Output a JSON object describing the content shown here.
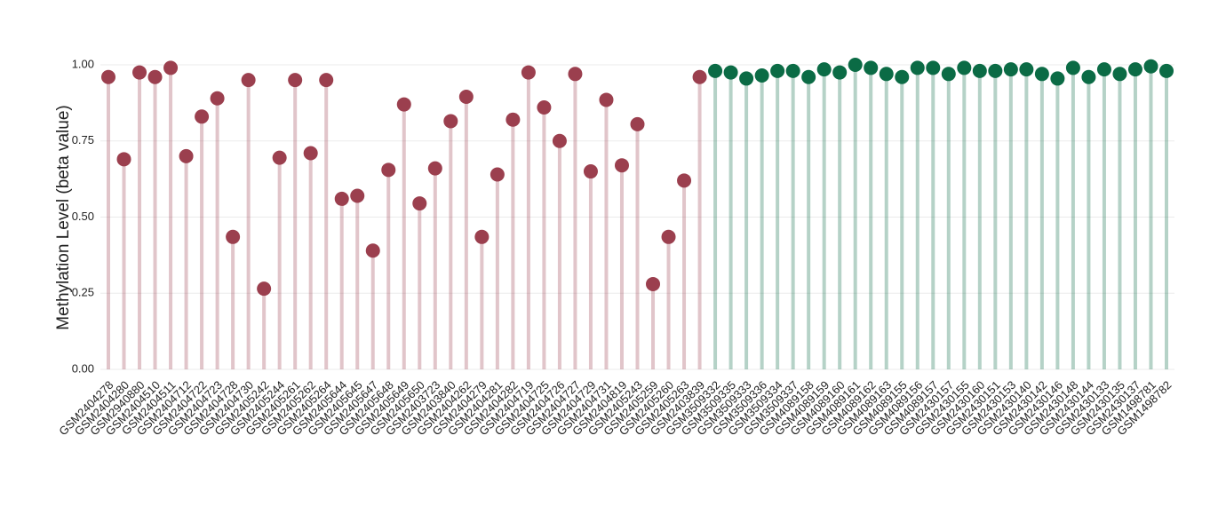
{
  "chart_data": {
    "type": "lollipop",
    "y_label": "Methylation Level (beta value)",
    "categories": [
      "GSM2404278",
      "GSM2404280",
      "GSM2940880",
      "GSM2404510",
      "GSM2404511",
      "GSM2404712",
      "GSM2404722",
      "GSM2404723",
      "GSM2404728",
      "GSM2404730",
      "GSM2405242",
      "GSM2405244",
      "GSM2405261",
      "GSM2405262",
      "GSM2405264",
      "GSM2405644",
      "GSM2405645",
      "GSM2405647",
      "GSM2405648",
      "GSM2405649",
      "GSM2405650",
      "GSM2403723",
      "GSM2403840",
      "GSM2404262",
      "GSM2404279",
      "GSM2404281",
      "GSM2404282",
      "GSM2404719",
      "GSM2404725",
      "GSM2404726",
      "GSM2404727",
      "GSM2404729",
      "GSM2404731",
      "GSM2404819",
      "GSM2405243",
      "GSM2405259",
      "GSM2405260",
      "GSM2405263",
      "GSM2403839",
      "GSM3509332",
      "GSM3509335",
      "GSM3509333",
      "GSM3509336",
      "GSM3509334",
      "GSM3509337",
      "GSM4089158",
      "GSM4089159",
      "GSM4089160",
      "GSM4089161",
      "GSM4089162",
      "GSM4089163",
      "GSM4089155",
      "GSM4089156",
      "GSM4089157",
      "GSM2430157",
      "GSM2430155",
      "GSM2430160",
      "GSM2430151",
      "GSM2430153",
      "GSM2430140",
      "GSM2430142",
      "GSM2430146",
      "GSM2430148",
      "GSM2430144",
      "GSM2430133",
      "GSM2430135",
      "GSM2430137",
      "GSM1498781",
      "GSM1498782"
    ],
    "values": [
      0.96,
      0.69,
      0.975,
      0.96,
      0.99,
      0.7,
      0.83,
      0.89,
      0.435,
      0.95,
      0.265,
      0.695,
      0.95,
      0.71,
      0.95,
      0.56,
      0.57,
      0.39,
      0.655,
      0.87,
      0.545,
      0.66,
      0.815,
      0.895,
      0.435,
      0.64,
      0.82,
      0.975,
      0.86,
      0.75,
      0.97,
      0.65,
      0.885,
      0.67,
      0.805,
      0.28,
      0.435,
      0.62,
      0.96,
      0.98,
      0.975,
      0.955,
      0.965,
      0.98,
      0.98,
      0.96,
      0.985,
      0.975,
      1.0,
      0.99,
      0.97,
      0.96,
      0.99,
      0.99,
      0.97,
      0.99,
      0.98,
      0.98,
      0.985,
      0.985,
      0.97,
      0.955,
      0.99,
      0.96,
      0.985,
      0.97,
      0.985,
      0.995,
      0.98
    ],
    "colors": [
      "#9b3f4e",
      "#9b3f4e",
      "#9b3f4e",
      "#9b3f4e",
      "#9b3f4e",
      "#9b3f4e",
      "#9b3f4e",
      "#9b3f4e",
      "#9b3f4e",
      "#9b3f4e",
      "#9b3f4e",
      "#9b3f4e",
      "#9b3f4e",
      "#9b3f4e",
      "#9b3f4e",
      "#9b3f4e",
      "#9b3f4e",
      "#9b3f4e",
      "#9b3f4e",
      "#9b3f4e",
      "#9b3f4e",
      "#9b3f4e",
      "#9b3f4e",
      "#9b3f4e",
      "#9b3f4e",
      "#9b3f4e",
      "#9b3f4e",
      "#9b3f4e",
      "#9b3f4e",
      "#9b3f4e",
      "#9b3f4e",
      "#9b3f4e",
      "#9b3f4e",
      "#9b3f4e",
      "#9b3f4e",
      "#9b3f4e",
      "#9b3f4e",
      "#9b3f4e",
      "#9b3f4e",
      "#0b6b45",
      "#0b6b45",
      "#0b6b45",
      "#0b6b45",
      "#0b6b45",
      "#0b6b45",
      "#0b6b45",
      "#0b6b45",
      "#0b6b45",
      "#0b6b45",
      "#0b6b45",
      "#0b6b45",
      "#0b6b45",
      "#0b6b45",
      "#0b6b45",
      "#0b6b45",
      "#0b6b45",
      "#0b6b45",
      "#0b6b45",
      "#0b6b45",
      "#0b6b45",
      "#0b6b45",
      "#0b6b45",
      "#0b6b45",
      "#0b6b45",
      "#0b6b45",
      "#0b6b45",
      "#0b6b45",
      "#0b6b45",
      "#0b6b45"
    ],
    "ylim": [
      0,
      1.0
    ],
    "yticks": [
      {
        "value": 0,
        "label": "0.00"
      },
      {
        "value": 0.25,
        "label": "0.25"
      },
      {
        "value": 0.5,
        "label": "0.50"
      },
      {
        "value": 0.75,
        "label": "0.75"
      },
      {
        "value": 1,
        "label": "1.00"
      }
    ],
    "grid": true
  }
}
